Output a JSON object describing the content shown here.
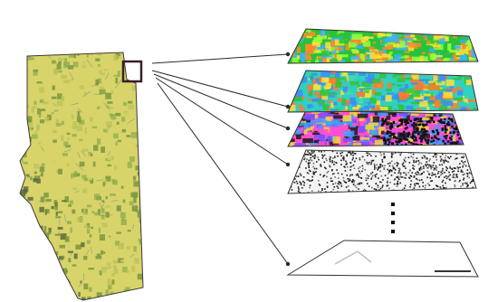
{
  "figure": {
    "description_visible_text": "",
    "region_map": {
      "depicted": "province-region-map",
      "fill_colors": [
        "#d8d46a",
        "#b9c25a",
        "#8fae4a",
        "#6f8f3a",
        "#4e5e3a",
        "#c7a86a"
      ],
      "outline_color": "#3b3b3b",
      "highlight_box_color": "#3a1f2a"
    },
    "layers": [
      {
        "kind": "classified-raster",
        "colors": [
          "#27c23a",
          "#ffe23a",
          "#ff8a2a",
          "#3ab0ff",
          "#9aff3a"
        ]
      },
      {
        "kind": "classified-raster",
        "colors": [
          "#2fd1c0",
          "#3a8cff",
          "#ffe13a",
          "#ff7a2a",
          "#34c23a"
        ]
      },
      {
        "kind": "classified-raster",
        "colors": [
          "#ff4fd1",
          "#7a4dff",
          "#3aa0ff",
          "#1a1a1a",
          "#ffd23a"
        ]
      },
      {
        "kind": "point-pattern",
        "colors": [
          "#1a1a1a",
          "#6a6a6a"
        ]
      },
      {
        "kind": "empty-outline",
        "colors": [
          "#bfbfbf"
        ]
      }
    ],
    "connector_color": "#2a2a2a",
    "ellipsis_dots": 4
  }
}
